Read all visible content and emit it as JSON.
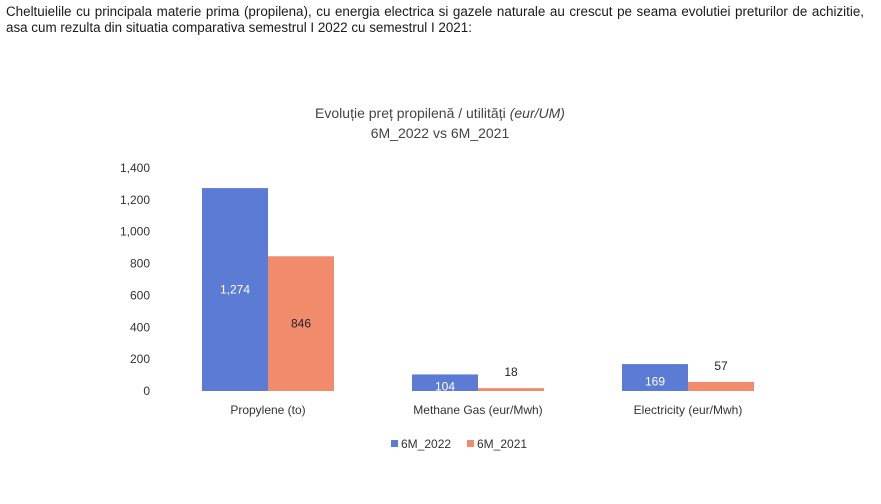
{
  "intro_text": "Cheltuielile cu principala materie prima (propilena), cu energia electrica si gazele naturale au crescut pe seama evolutiei preturilor de achizitie, asa cum rezulta din  situatia comparativa semestrul I 2022 cu semestrul I 2021:",
  "chart_data": {
    "type": "bar",
    "title": "Evoluție preț propilenă / utilități",
    "title_italic": "(eur/UM)",
    "subtitle": "6M_2022 vs 6M_2021",
    "categories": [
      "Propylene (to)",
      "Methane Gas (eur/Mwh)",
      "Electricity (eur/Mwh)"
    ],
    "series": [
      {
        "name": "6M_2022",
        "values": [
          1274,
          104,
          169
        ],
        "labels": [
          "1,274",
          "104",
          "169"
        ],
        "color": "#5b7bd5"
      },
      {
        "name": "6M_2021",
        "values": [
          846,
          18,
          57
        ],
        "labels": [
          "846",
          "18",
          "57"
        ],
        "color": "#f08c6c"
      }
    ],
    "ylim": [
      0,
      1400
    ],
    "yticks": [
      "0",
      "200",
      "400",
      "600",
      "800",
      "1,000",
      "1,200",
      "1,400"
    ],
    "grid": false,
    "legend_position": "bottom"
  }
}
